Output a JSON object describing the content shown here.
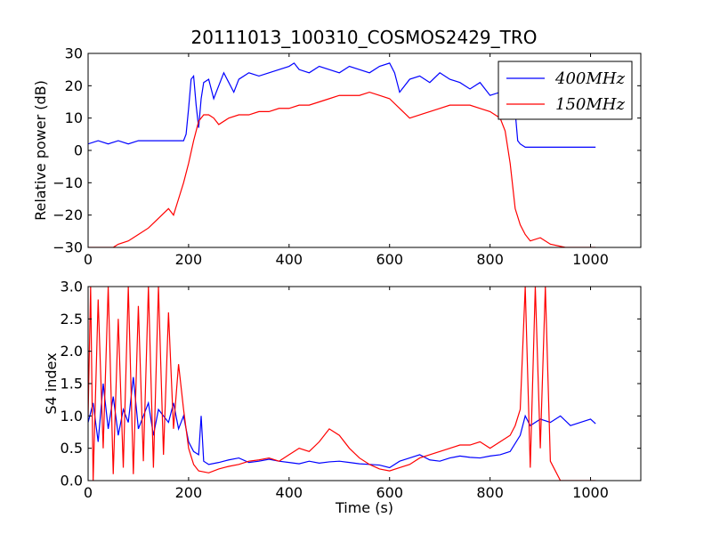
{
  "figure": {
    "title": "20111013_100310_COSMOS2429_TRO",
    "background": "#ffffff"
  },
  "chart_data": [
    {
      "type": "line",
      "title": "20111013_100310_COSMOS2429_TRO",
      "xlabel": "",
      "ylabel": "Relative power (dB)",
      "xlim": [
        0,
        1100
      ],
      "ylim": [
        -30,
        30
      ],
      "xticks": [
        0,
        200,
        400,
        600,
        800,
        1000
      ],
      "yticks": [
        -30,
        -20,
        -10,
        0,
        10,
        20,
        30
      ],
      "grid": false,
      "legend": {
        "placement": "top-right",
        "entries": [
          {
            "label": "400MHz",
            "color": "#0000ff"
          },
          {
            "label": "150MHz",
            "color": "#ff0000"
          }
        ]
      },
      "series": [
        {
          "name": "400MHz",
          "color": "#0000ff",
          "x": [
            0,
            20,
            40,
            60,
            80,
            100,
            120,
            140,
            160,
            180,
            190,
            195,
            200,
            205,
            210,
            215,
            220,
            225,
            230,
            240,
            250,
            260,
            270,
            280,
            290,
            300,
            320,
            340,
            360,
            380,
            400,
            410,
            420,
            440,
            460,
            480,
            500,
            520,
            540,
            560,
            580,
            600,
            610,
            620,
            640,
            660,
            680,
            700,
            720,
            740,
            760,
            780,
            800,
            820,
            840,
            850,
            855,
            860,
            870,
            900,
            950,
            1000,
            1010
          ],
          "y": [
            2,
            3,
            2,
            3,
            2,
            3,
            3,
            3,
            3,
            3,
            3,
            5,
            13,
            22,
            23,
            14,
            7,
            16,
            21,
            22,
            16,
            20,
            24,
            21,
            18,
            22,
            24,
            23,
            24,
            25,
            26,
            27,
            25,
            24,
            26,
            25,
            24,
            26,
            25,
            24,
            26,
            27,
            24,
            18,
            22,
            23,
            21,
            24,
            22,
            21,
            19,
            21,
            17,
            18,
            16,
            12,
            3,
            2,
            1,
            1,
            1,
            1,
            1
          ]
        },
        {
          "name": "150MHz",
          "color": "#ff0000",
          "x": [
            0,
            50,
            60,
            80,
            100,
            120,
            140,
            160,
            170,
            180,
            190,
            200,
            210,
            220,
            230,
            240,
            250,
            260,
            280,
            300,
            320,
            340,
            360,
            380,
            400,
            420,
            440,
            460,
            480,
            500,
            520,
            540,
            560,
            580,
            600,
            620,
            640,
            660,
            680,
            700,
            720,
            740,
            760,
            780,
            800,
            820,
            830,
            840,
            850,
            860,
            870,
            880,
            900,
            920,
            950,
            1000,
            1010
          ],
          "y": [
            -30,
            -30,
            -29,
            -28,
            -26,
            -24,
            -21,
            -18,
            -20,
            -15,
            -10,
            -4,
            3,
            9,
            11,
            11,
            10,
            8,
            10,
            11,
            11,
            12,
            12,
            13,
            13,
            14,
            14,
            15,
            16,
            17,
            17,
            17,
            18,
            17,
            16,
            13,
            10,
            11,
            12,
            13,
            14,
            14,
            14,
            13,
            12,
            10,
            6,
            -4,
            -18,
            -23,
            -26,
            -28,
            -27,
            -29,
            -30,
            -30,
            -30
          ]
        }
      ]
    },
    {
      "type": "line",
      "title": "",
      "xlabel": "Time (s)",
      "ylabel": "S4 index",
      "xlim": [
        0,
        1100
      ],
      "ylim": [
        0,
        3
      ],
      "xticks": [
        0,
        200,
        400,
        600,
        800,
        1000
      ],
      "yticks": [
        0.0,
        0.5,
        1.0,
        1.5,
        2.0,
        2.5,
        3.0
      ],
      "grid": false,
      "series": [
        {
          "name": "400MHz",
          "color": "#0000ff",
          "x": [
            0,
            10,
            20,
            30,
            40,
            50,
            60,
            70,
            80,
            90,
            100,
            110,
            120,
            130,
            140,
            150,
            160,
            170,
            180,
            190,
            200,
            210,
            220,
            225,
            230,
            240,
            260,
            280,
            300,
            320,
            340,
            360,
            380,
            400,
            420,
            440,
            460,
            480,
            500,
            520,
            540,
            560,
            580,
            600,
            620,
            640,
            660,
            680,
            700,
            720,
            740,
            760,
            780,
            800,
            820,
            840,
            860,
            870,
            880,
            900,
            920,
            940,
            960,
            980,
            1000,
            1010
          ],
          "y": [
            0.9,
            1.2,
            0.6,
            1.5,
            0.8,
            1.3,
            0.7,
            1.1,
            0.9,
            1.6,
            0.8,
            1.0,
            1.2,
            0.7,
            1.1,
            1.0,
            0.9,
            1.2,
            0.8,
            1.0,
            0.6,
            0.45,
            0.4,
            1.0,
            0.3,
            0.25,
            0.28,
            0.32,
            0.35,
            0.28,
            0.3,
            0.33,
            0.3,
            0.28,
            0.26,
            0.3,
            0.27,
            0.29,
            0.3,
            0.28,
            0.26,
            0.25,
            0.24,
            0.2,
            0.3,
            0.35,
            0.4,
            0.32,
            0.3,
            0.35,
            0.38,
            0.36,
            0.35,
            0.38,
            0.4,
            0.45,
            0.7,
            1.0,
            0.85,
            0.95,
            0.9,
            1.0,
            0.85,
            0.9,
            0.95,
            0.88
          ]
        },
        {
          "name": "150MHz",
          "color": "#ff0000",
          "x": [
            0,
            5,
            10,
            20,
            30,
            40,
            50,
            60,
            70,
            80,
            90,
            100,
            110,
            120,
            130,
            140,
            150,
            160,
            170,
            180,
            190,
            200,
            210,
            220,
            240,
            260,
            280,
            300,
            320,
            340,
            360,
            380,
            400,
            420,
            440,
            460,
            480,
            500,
            520,
            540,
            560,
            580,
            600,
            620,
            640,
            660,
            680,
            700,
            720,
            740,
            760,
            780,
            800,
            820,
            840,
            850,
            860,
            870,
            880,
            890,
            900,
            910,
            920,
            940,
            960,
            980,
            1000,
            1010
          ],
          "y": [
            1.0,
            3.0,
            0.0,
            2.8,
            0.5,
            3.0,
            0.1,
            2.5,
            0.2,
            3.0,
            0.1,
            2.7,
            0.3,
            3.0,
            0.2,
            3.0,
            0.4,
            2.6,
            0.8,
            1.8,
            1.1,
            0.5,
            0.25,
            0.15,
            0.12,
            0.18,
            0.22,
            0.25,
            0.3,
            0.32,
            0.35,
            0.3,
            0.4,
            0.5,
            0.45,
            0.6,
            0.8,
            0.7,
            0.5,
            0.35,
            0.25,
            0.18,
            0.15,
            0.2,
            0.25,
            0.35,
            0.4,
            0.45,
            0.5,
            0.55,
            0.55,
            0.6,
            0.5,
            0.6,
            0.7,
            0.85,
            1.1,
            3.0,
            0.2,
            3.0,
            0.5,
            3.0,
            0.3,
            0.0,
            0.0,
            0.0,
            0.0,
            0.0
          ]
        }
      ]
    }
  ]
}
